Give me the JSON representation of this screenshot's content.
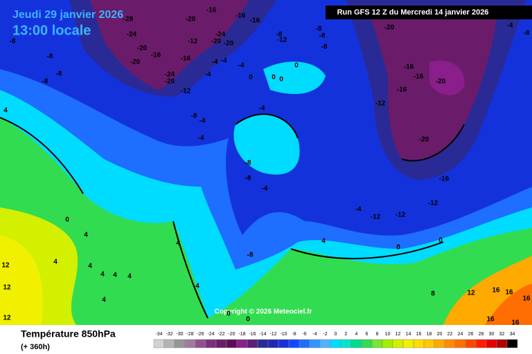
{
  "header": {
    "date": "Jeudi 29 janvier 2026",
    "time": "13:00 locale",
    "run": "Run GFS 12 Z du Mercredi 14 janvier 2026"
  },
  "copyright": "Copyright © 2026 Meteociel.fr",
  "legend": {
    "title": "Température 850hPa",
    "lead": "(+ 360h)",
    "values": [
      -34,
      -32,
      -30,
      -28,
      -26,
      -24,
      -22,
      -20,
      -18,
      -16,
      -14,
      -12,
      -10,
      -8,
      -6,
      -4,
      -2,
      0,
      2,
      4,
      6,
      8,
      10,
      12,
      14,
      16,
      18,
      20,
      22,
      24,
      26,
      28,
      30,
      32,
      34
    ],
    "colors": [
      "#d2d2d2",
      "#b4b4b4",
      "#969696",
      "#a07aa0",
      "#905090",
      "#7c2e7c",
      "#6a1c6a",
      "#5a0e5a",
      "#8a1e8a",
      "#5a1e78",
      "#2a2a96",
      "#1e28b4",
      "#1432dc",
      "#1446ff",
      "#1e6eff",
      "#3296ff",
      "#50b4ff",
      "#00dcff",
      "#00e6c8",
      "#00dc8c",
      "#32dc50",
      "#78e632",
      "#a0f000",
      "#d2f000",
      "#f0f000",
      "#ffdc00",
      "#ffc800",
      "#ffaa00",
      "#ff8c00",
      "#ff6e00",
      "#ff4600",
      "#ff1e00",
      "#e60000",
      "#b40000",
      "#000000"
    ]
  },
  "map_labels": [
    -28,
    -24,
    -20,
    -16,
    -20,
    -20,
    -12,
    -16,
    -24,
    -20,
    -20,
    -16,
    -16,
    -16,
    -24,
    -20,
    -12,
    -8,
    -8,
    -8,
    -8,
    4,
    -8,
    -4,
    -4,
    -4,
    -4,
    -4,
    -4,
    0,
    -4,
    0,
    0,
    0,
    -8,
    -12,
    -8,
    -8,
    -8,
    -20,
    -16,
    -16,
    -20,
    -16,
    -12,
    -20,
    -16,
    -12,
    -12,
    -12,
    -4,
    -8,
    -8,
    -4,
    0,
    4,
    4,
    4,
    4,
    4,
    4,
    4,
    12,
    12,
    12,
    4,
    4,
    -8,
    0,
    0,
    4,
    12,
    16,
    16,
    16,
    16,
    16,
    8,
    0,
    0,
    -4,
    -8
  ]
}
